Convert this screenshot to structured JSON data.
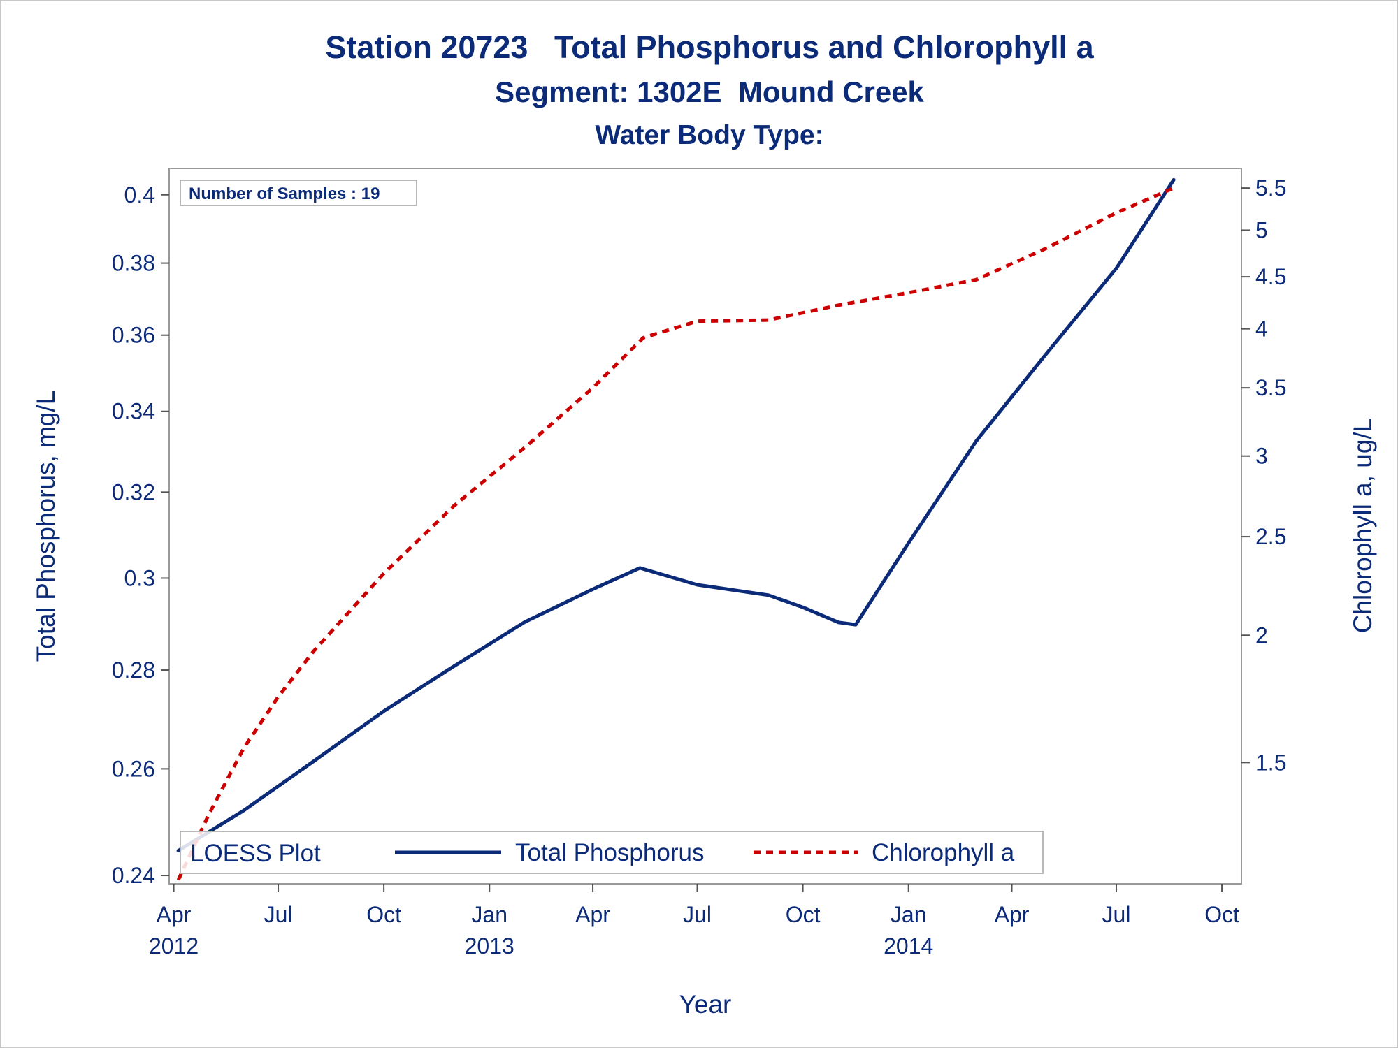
{
  "chart_data": {
    "type": "line",
    "title": "Station 20723   Total Phosphorus and Chlorophyll a",
    "subtitle": "Segment: 1302E  Mound Creek",
    "subtitle2": "Water Body Type:",
    "xlabel": "Year",
    "ylabel": "Total Phosphorus, mg/L",
    "y2label": "Chlorophyll a, ug/L",
    "inset": "Number of Samples : 19",
    "legend": {
      "title": "LOESS Plot",
      "position": "bottom-inside",
      "items": [
        "Total Phosphorus",
        "Chlorophyll a"
      ]
    },
    "x_ticks": [
      {
        "date": "2012-04-01",
        "label": "Apr",
        "year": "2012"
      },
      {
        "date": "2012-07-01",
        "label": "Jul",
        "year": ""
      },
      {
        "date": "2012-10-01",
        "label": "Oct",
        "year": ""
      },
      {
        "date": "2013-01-01",
        "label": "Jan",
        "year": "2013"
      },
      {
        "date": "2013-04-01",
        "label": "Apr",
        "year": ""
      },
      {
        "date": "2013-07-01",
        "label": "Jul",
        "year": ""
      },
      {
        "date": "2013-10-01",
        "label": "Oct",
        "year": ""
      },
      {
        "date": "2014-01-01",
        "label": "Jan",
        "year": "2014"
      },
      {
        "date": "2014-04-01",
        "label": "Apr",
        "year": ""
      },
      {
        "date": "2014-07-01",
        "label": "Jul",
        "year": ""
      },
      {
        "date": "2014-10-01",
        "label": "Oct",
        "year": ""
      }
    ],
    "xlim": [
      "2012-03-28",
      "2014-10-18"
    ],
    "y_scale": "log",
    "y_ticks": [
      0.24,
      0.26,
      0.28,
      0.3,
      0.32,
      0.34,
      0.36,
      0.38,
      0.4
    ],
    "y_tick_labels": [
      "0.24",
      "0.26",
      "0.28",
      "0.3",
      "0.32",
      "0.34",
      "0.36",
      "0.38",
      "0.4"
    ],
    "ylim": [
      0.2385,
      0.408
    ],
    "y2_scale": "log",
    "y2_ticks": [
      1.5,
      2,
      2.5,
      3,
      3.5,
      4,
      4.5,
      5,
      5.5
    ],
    "y2_tick_labels": [
      "1.5",
      "2",
      "2.5",
      "3",
      "3.5",
      "4",
      "4.5",
      "5",
      "5.5"
    ],
    "y2lim": [
      1.14,
      5.75
    ],
    "grid": false,
    "series": [
      {
        "name": "Total Phosphorus",
        "axis": "left",
        "color": "#0b2a78",
        "style": "solid",
        "x": [
          "2012-04-05",
          "2012-06-01",
          "2012-08-01",
          "2012-10-01",
          "2012-12-01",
          "2013-02-01",
          "2013-04-01",
          "2013-05-12",
          "2013-07-01",
          "2013-09-01",
          "2013-10-01",
          "2013-11-01",
          "2013-11-16",
          "2014-01-01",
          "2014-03-01",
          "2014-05-01",
          "2014-07-01",
          "2014-08-20"
        ],
        "values": [
          0.2445,
          0.252,
          0.2615,
          0.2715,
          0.2808,
          0.2903,
          0.2975,
          0.3023,
          0.2985,
          0.2962,
          0.2935,
          0.2902,
          0.2897,
          0.308,
          0.3325,
          0.355,
          0.3785,
          0.4045
        ]
      },
      {
        "name": "Chlorophyll a",
        "axis": "right",
        "color": "#cc0000",
        "style": "dashed",
        "x": [
          "2012-04-05",
          "2012-05-01",
          "2012-06-01",
          "2012-07-01",
          "2012-08-01",
          "2012-10-01",
          "2012-12-01",
          "2013-02-01",
          "2013-04-01",
          "2013-05-15",
          "2013-07-01",
          "2013-09-01",
          "2013-11-01",
          "2014-01-01",
          "2014-03-01",
          "2014-05-01",
          "2014-07-01",
          "2014-08-20"
        ],
        "values": [
          1.15,
          1.33,
          1.55,
          1.74,
          1.93,
          2.3,
          2.68,
          3.06,
          3.5,
          3.92,
          4.07,
          4.08,
          4.22,
          4.34,
          4.47,
          4.8,
          5.2,
          5.5
        ]
      }
    ]
  }
}
